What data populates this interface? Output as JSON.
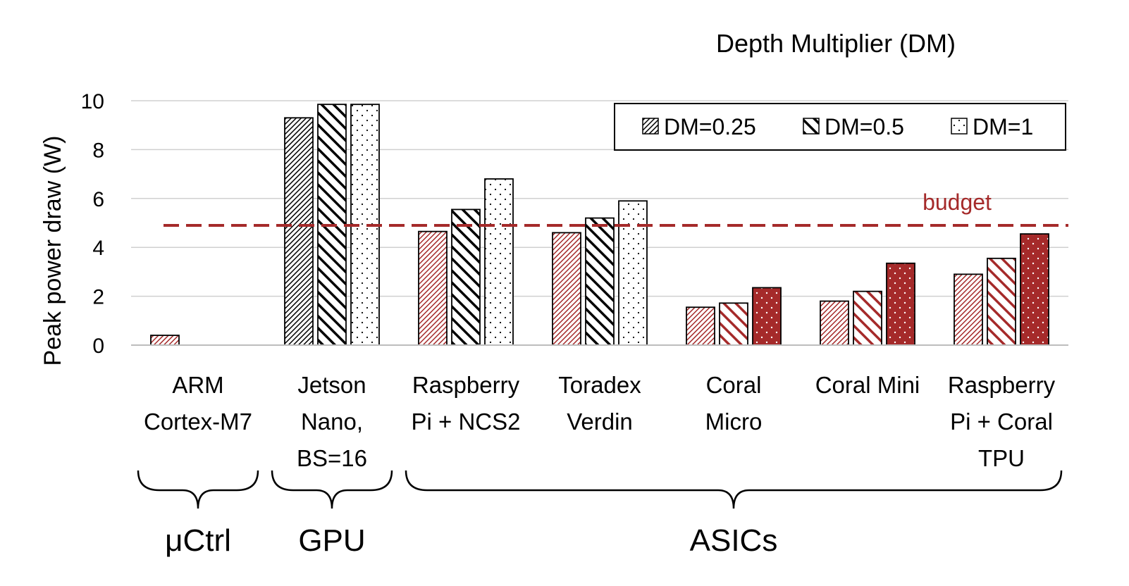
{
  "chart_data": {
    "type": "bar",
    "title": "Depth Multiplier (DM)",
    "ylabel": "Peak power draw (W)",
    "ylim": [
      0,
      10
    ],
    "yticks": [
      0,
      2,
      4,
      6,
      8,
      10
    ],
    "categories": [
      [
        "ARM",
        "Cortex-M7"
      ],
      [
        "Jetson",
        "Nano,",
        "BS=16"
      ],
      [
        "Raspberry",
        "Pi + NCS2"
      ],
      [
        "Toradex",
        "Verdin"
      ],
      [
        "Coral",
        "Micro"
      ],
      [
        "Coral Mini"
      ],
      [
        "Raspberry",
        "Pi + Coral",
        "TPU"
      ]
    ],
    "series": [
      {
        "name": "DM=0.25",
        "pattern": "dense-hatch",
        "values": [
          0.4,
          9.3,
          4.65,
          4.6,
          1.55,
          1.8,
          2.9
        ]
      },
      {
        "name": "DM=0.5",
        "pattern": "wide-hatch",
        "values": [
          null,
          9.85,
          5.55,
          5.2,
          1.72,
          2.2,
          3.55
        ]
      },
      {
        "name": "DM=1",
        "pattern": "dots",
        "values": [
          null,
          9.85,
          6.8,
          5.9,
          2.35,
          3.35,
          4.55
        ]
      }
    ],
    "within_budget_color": "#a52a2a",
    "over_budget_color": "#000000",
    "legend_position": "top-right",
    "budget": {
      "value": 4.9,
      "label": "budget",
      "color": "#a52a2a"
    },
    "groups": [
      {
        "label": "μCtrl",
        "categories": [
          0
        ]
      },
      {
        "label": "GPU",
        "categories": [
          1
        ]
      },
      {
        "label": "ASICs",
        "categories": [
          2,
          3,
          4,
          5,
          6
        ]
      }
    ],
    "grid": true
  }
}
